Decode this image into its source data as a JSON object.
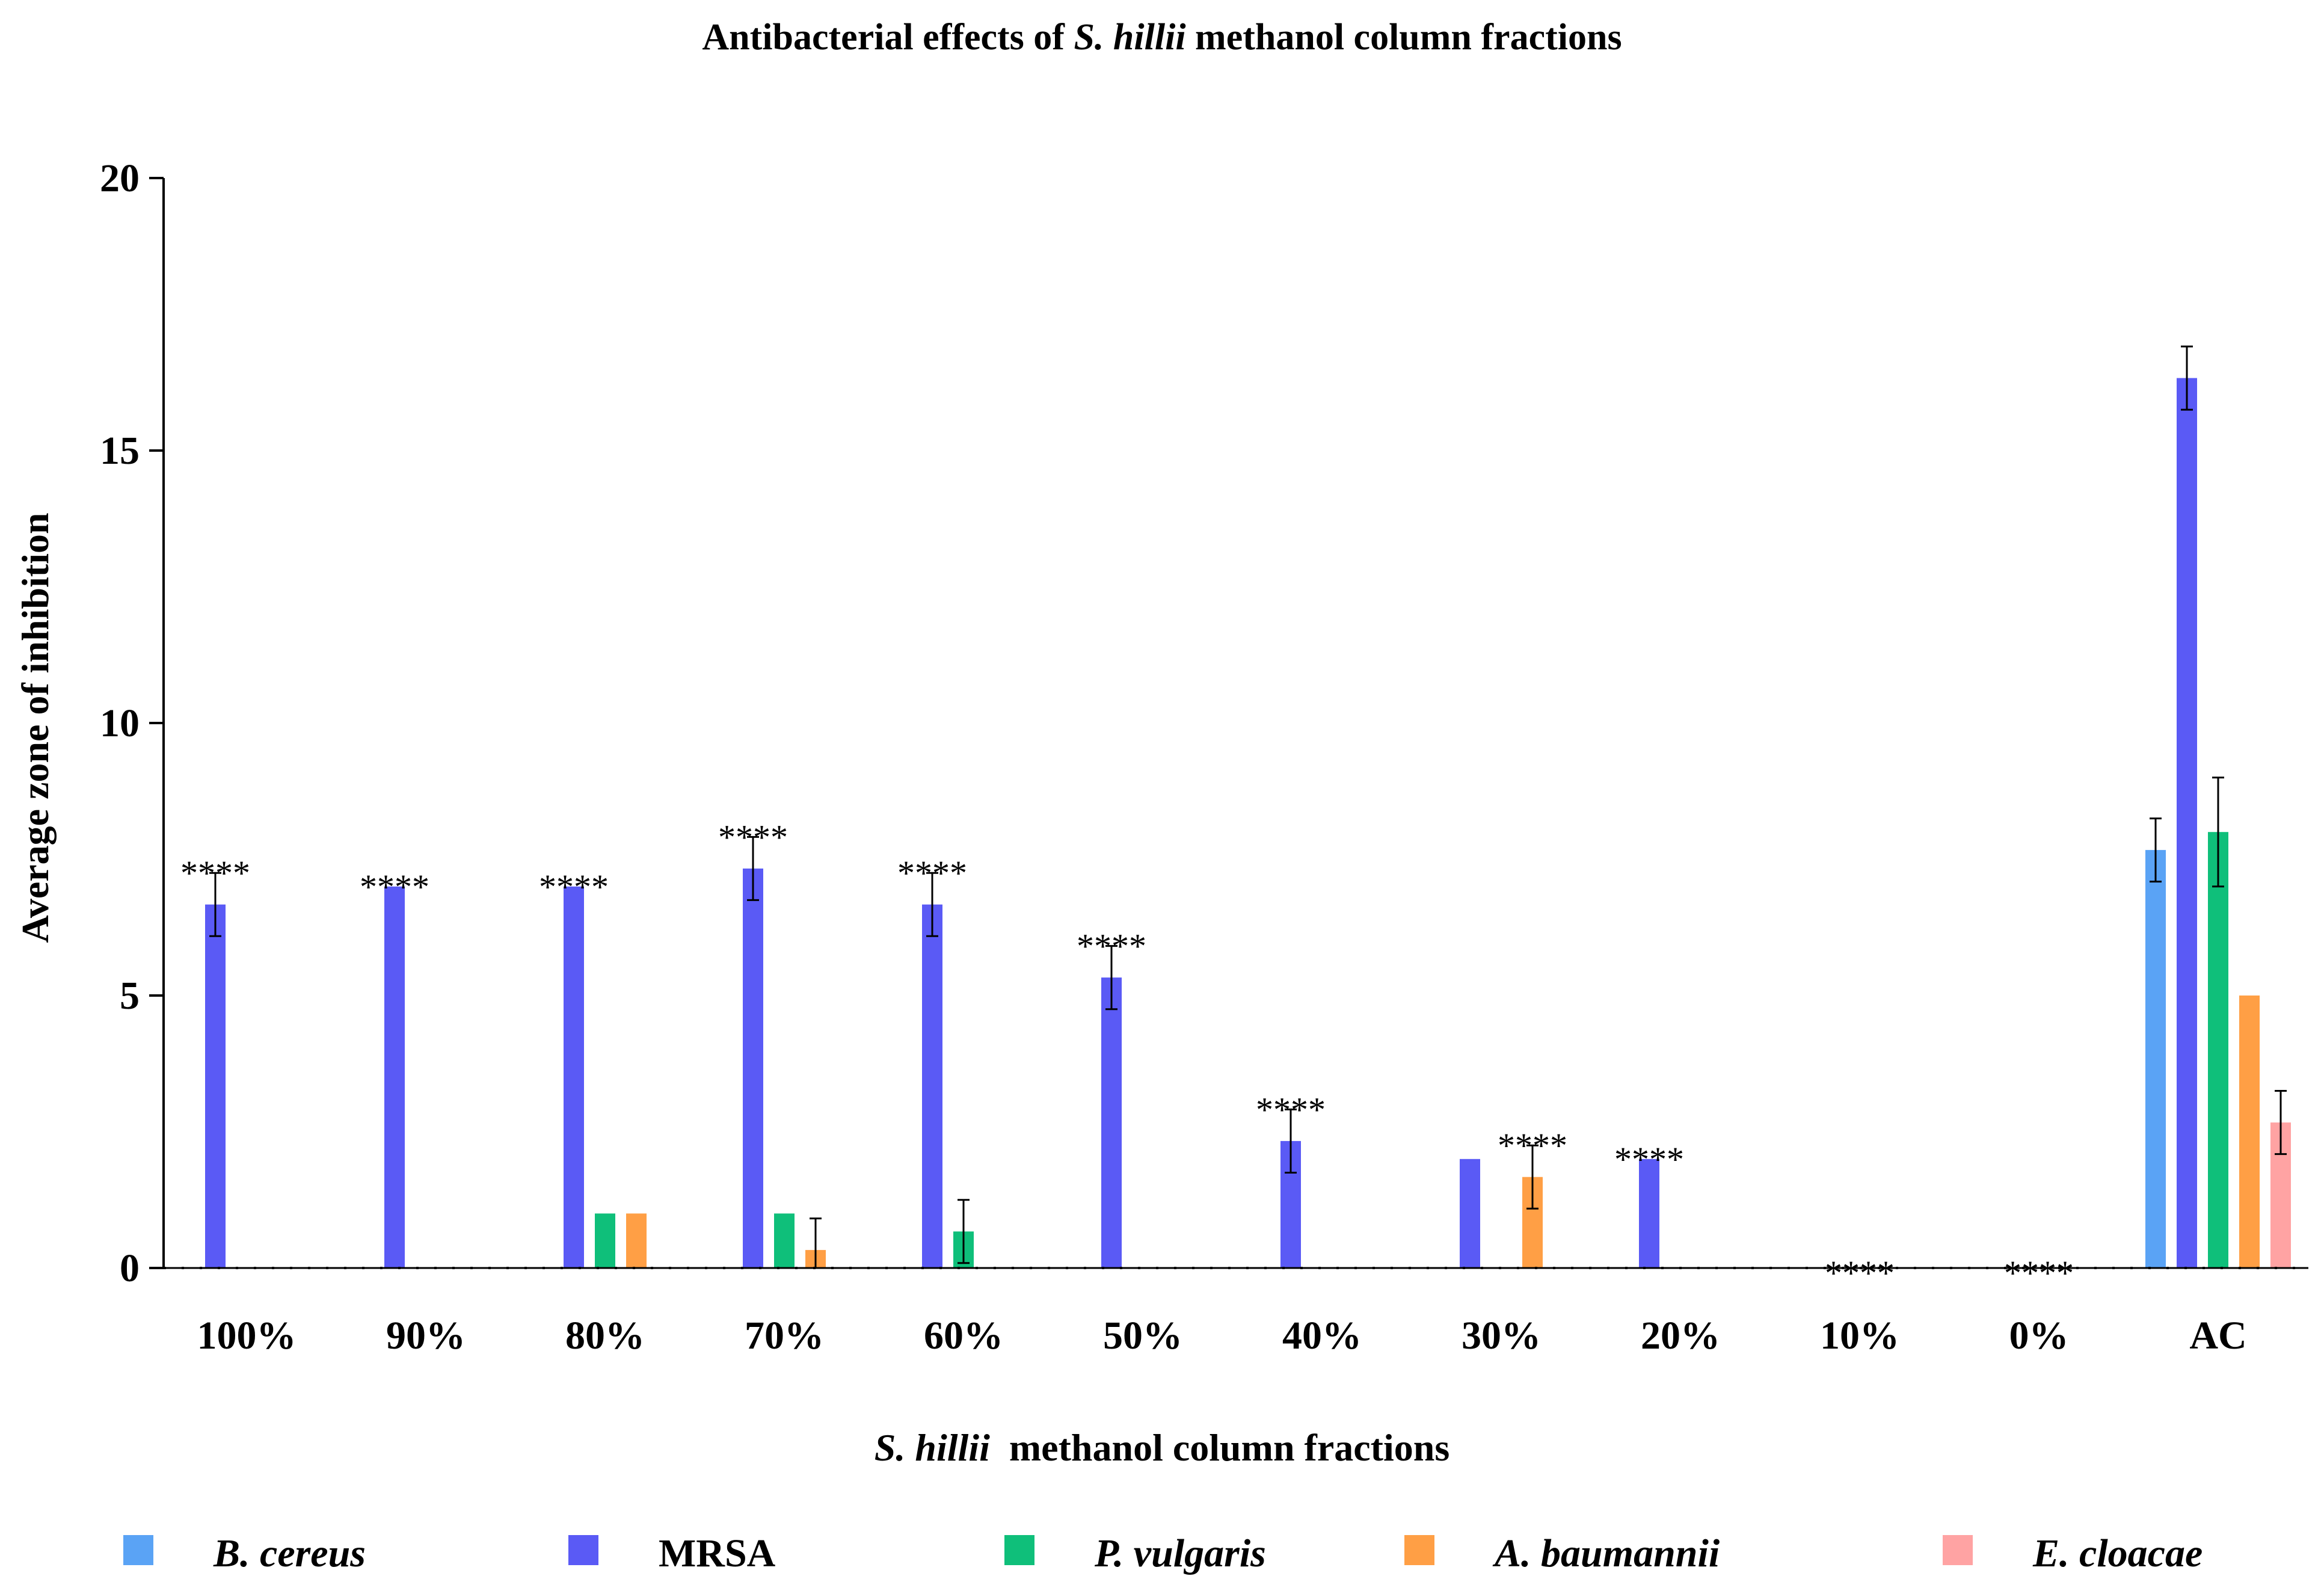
{
  "chart_data": {
    "type": "bar",
    "title": {
      "prefix": "Antibacterial effects of ",
      "italic": "S. hillii",
      "suffix": " methanol column fractions"
    },
    "xlabel": {
      "italic": "S. hillii",
      "suffix": "  methanol column fractions"
    },
    "ylabel": "Average zone of inhibition",
    "ylim": [
      0,
      20
    ],
    "yticks": [
      "0",
      "5",
      "10",
      "15",
      "20"
    ],
    "categories": [
      "100%",
      "90%",
      "80%",
      "70%",
      "60%",
      "50%",
      "40%",
      "30%",
      "20%",
      "10%",
      "0%",
      "AC"
    ],
    "series": [
      {
        "name": "B. cereus",
        "italic": true,
        "color": "#5aa3f5",
        "values": [
          0,
          0,
          0,
          0,
          0,
          0,
          0,
          0,
          0,
          0,
          0,
          7.67
        ],
        "errors": [
          0,
          0,
          0,
          0,
          0,
          0,
          0,
          0,
          0,
          0,
          0,
          0.58
        ]
      },
      {
        "name": "MRSA",
        "italic": false,
        "color": "#5a5af5",
        "values": [
          6.67,
          7,
          7,
          7.33,
          6.67,
          5.33,
          2.33,
          2,
          2,
          0,
          0,
          16.33
        ],
        "errors": [
          0.58,
          0,
          0,
          0.58,
          0.58,
          0.58,
          0.58,
          0,
          0,
          0,
          0,
          0.58
        ]
      },
      {
        "name": "P. vulgaris",
        "italic": true,
        "color": "#0fbf7a",
        "values": [
          0,
          0,
          1,
          1,
          0.67,
          0,
          0,
          0,
          0,
          0,
          0,
          8
        ],
        "errors": [
          0,
          0,
          0,
          0,
          0.58,
          0,
          0,
          0,
          0,
          0,
          0,
          1
        ]
      },
      {
        "name": "A. baumannii",
        "italic": true,
        "color": "#ff9f45",
        "values": [
          0,
          0,
          1,
          0.33,
          0,
          0,
          0,
          1.67,
          0,
          0,
          0,
          5
        ],
        "errors": [
          0,
          0,
          0,
          0.58,
          0,
          0,
          0,
          0.58,
          0,
          0,
          0,
          0
        ]
      },
      {
        "name": "E. cloacae",
        "italic": true,
        "color": "#ffa3a3",
        "values": [
          0,
          0,
          0,
          0,
          0,
          0,
          0,
          0,
          0,
          0,
          0,
          2.67
        ],
        "errors": [
          0,
          0,
          0,
          0,
          0,
          0,
          0,
          0,
          0,
          0,
          0,
          0.58
        ]
      }
    ],
    "significance": [
      {
        "category": "100%",
        "label": "****"
      },
      {
        "category": "90%",
        "label": "****"
      },
      {
        "category": "80%",
        "label": "****"
      },
      {
        "category": "70%",
        "label": "****"
      },
      {
        "category": "60%",
        "label": "****"
      },
      {
        "category": "50%",
        "label": "****"
      },
      {
        "category": "40%",
        "label": "****"
      },
      {
        "category": "30%",
        "label": "****"
      },
      {
        "category": "20%",
        "label": "****"
      },
      {
        "category": "10%",
        "label": "****"
      },
      {
        "category": "0%",
        "label": "****"
      }
    ],
    "legend_position": "bottom"
  }
}
